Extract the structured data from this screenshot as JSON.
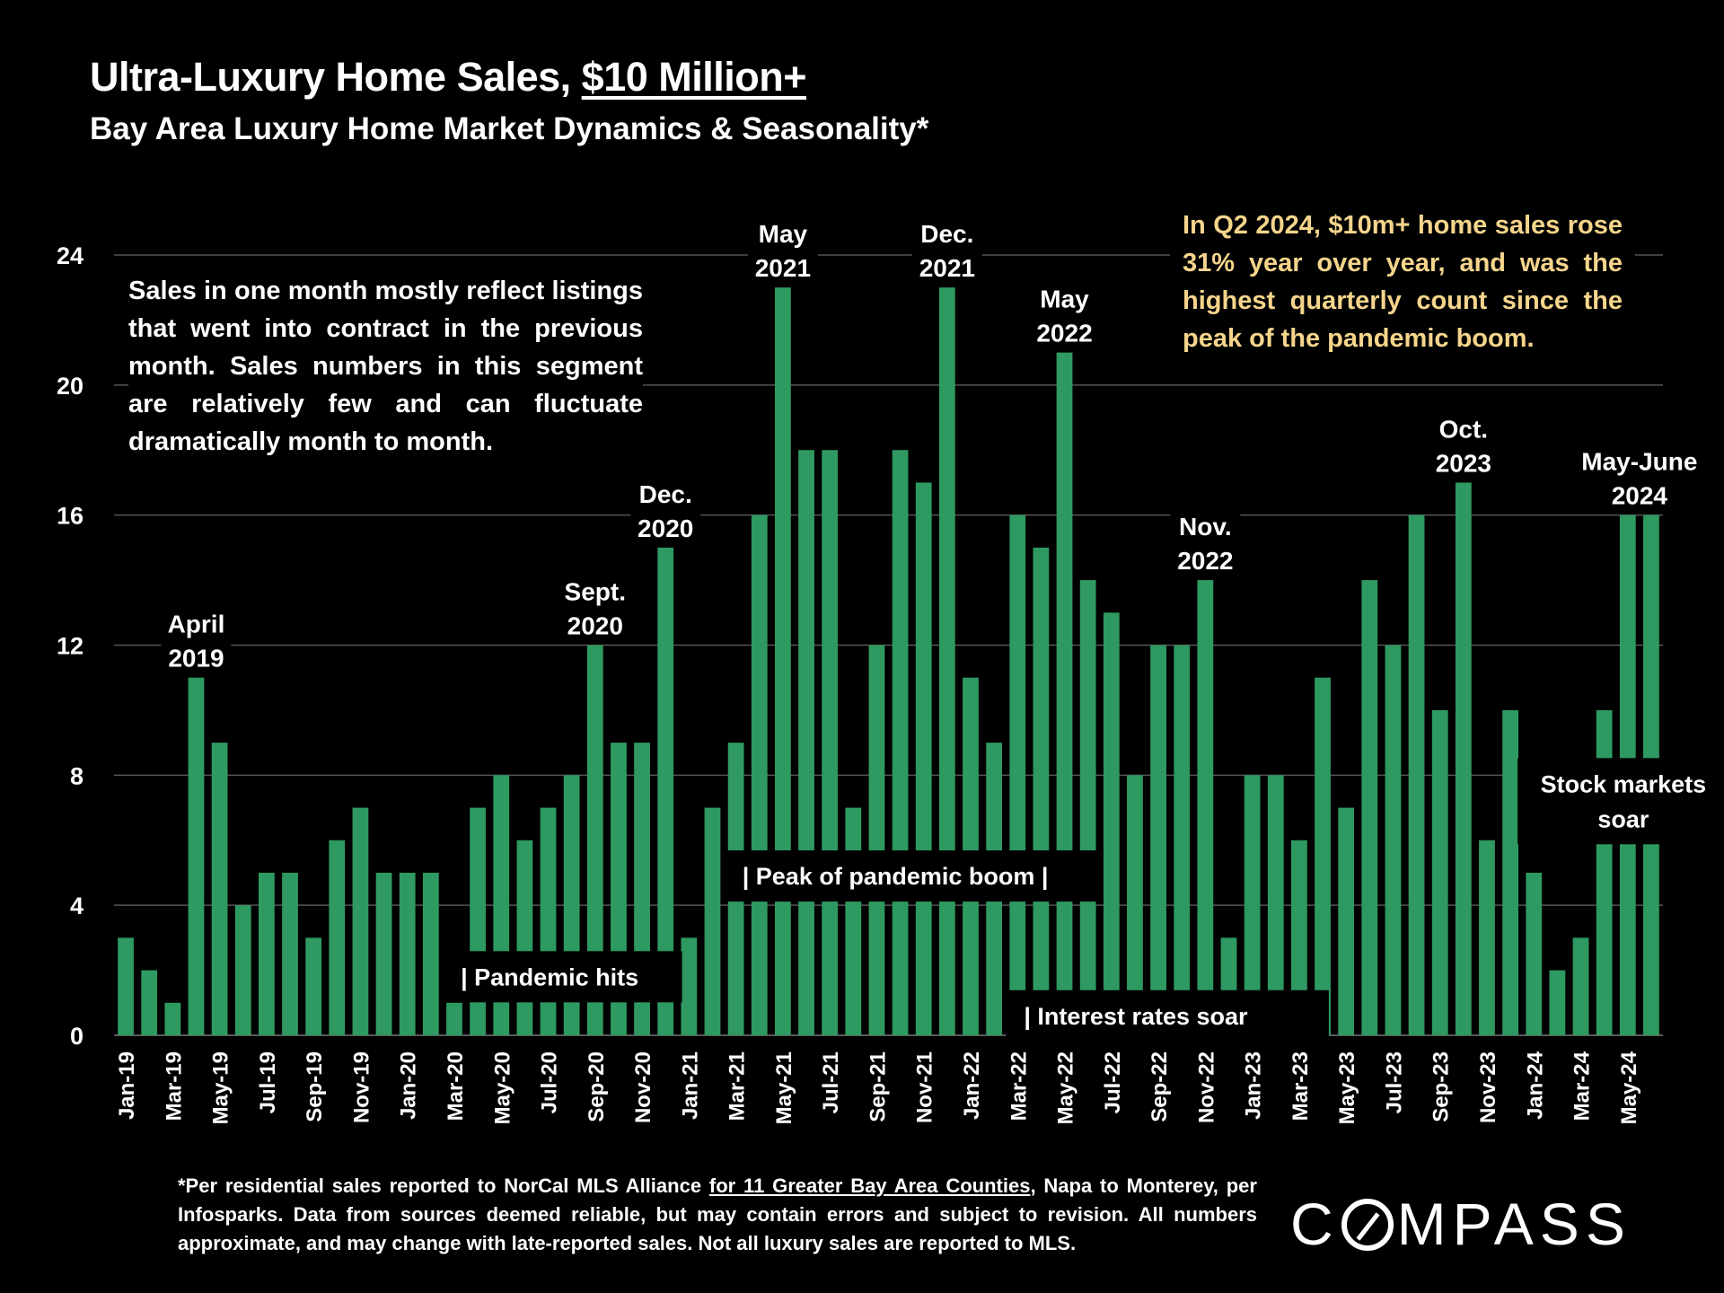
{
  "title": {
    "main": "Ultra-Luxury Home Sales, ",
    "main_underlined": "$10 Million+",
    "subtitle": "Bay Area Luxury Home Market Dynamics & Seasonality*"
  },
  "notes": {
    "left": "Sales in one month mostly reflect listings that went into contract in the previous month. Sales numbers in this segment are relatively few and can fluctuate dramatically month to month.",
    "right": "In Q2 2024, $10m+ home sales rose 31% year over year, and was the highest quarterly count since the peak of the pandemic boom."
  },
  "chart_data": {
    "type": "bar",
    "ylim": [
      0,
      24
    ],
    "yticks": [
      0,
      4,
      8,
      12,
      16,
      20,
      24
    ],
    "grid": true,
    "bar_color": "#2e9a61",
    "categories": [
      "Jan-19",
      "Feb-19",
      "Mar-19",
      "Apr-19",
      "May-19",
      "Jun-19",
      "Jul-19",
      "Aug-19",
      "Sep-19",
      "Oct-19",
      "Nov-19",
      "Dec-19",
      "Jan-20",
      "Feb-20",
      "Mar-20",
      "Apr-20",
      "May-20",
      "Jun-20",
      "Jul-20",
      "Aug-20",
      "Sep-20",
      "Oct-20",
      "Nov-20",
      "Dec-20",
      "Jan-21",
      "Feb-21",
      "Mar-21",
      "Apr-21",
      "May-21",
      "Jun-21",
      "Jul-21",
      "Aug-21",
      "Sep-21",
      "Oct-21",
      "Nov-21",
      "Dec-21",
      "Jan-22",
      "Feb-22",
      "Mar-22",
      "Apr-22",
      "May-22",
      "Jun-22",
      "Jul-22",
      "Aug-22",
      "Sep-22",
      "Oct-22",
      "Nov-22",
      "Dec-22",
      "Jan-23",
      "Feb-23",
      "Mar-23",
      "Apr-23",
      "May-23",
      "Jun-23",
      "Jul-23",
      "Aug-23",
      "Sep-23",
      "Oct-23",
      "Nov-23",
      "Dec-23",
      "Jan-24",
      "Feb-24",
      "Mar-24",
      "Apr-24",
      "May-24",
      "Jun-24"
    ],
    "values": [
      3,
      2,
      1,
      11,
      9,
      4,
      5,
      5,
      3,
      6,
      7,
      5,
      5,
      5,
      1,
      7,
      8,
      6,
      7,
      8,
      12,
      9,
      9,
      15,
      3,
      7,
      9,
      16,
      23,
      18,
      18,
      7,
      12,
      18,
      17,
      23,
      11,
      9,
      16,
      15,
      21,
      14,
      13,
      8,
      12,
      12,
      14,
      3,
      8,
      8,
      6,
      11,
      7,
      14,
      12,
      16,
      10,
      17,
      6,
      10,
      5,
      2,
      3,
      10,
      16,
      16
    ],
    "peak_labels": [
      {
        "index": 3,
        "line1": "April",
        "line2": "2019"
      },
      {
        "index": 20,
        "line1": "Sept.",
        "line2": "2020"
      },
      {
        "index": 23,
        "line1": "Dec.",
        "line2": "2020"
      },
      {
        "index": 28,
        "line1": "May",
        "line2": "2021"
      },
      {
        "index": 35,
        "line1": "Dec.",
        "line2": "2021"
      },
      {
        "index": 40,
        "line1": "May",
        "line2": "2022"
      },
      {
        "index": 46,
        "line1": "Nov.",
        "line2": "2022"
      },
      {
        "index": 57,
        "line1": "Oct.",
        "line2": "2023"
      },
      {
        "index": 64.5,
        "line1": "May-June",
        "line2": "2024"
      }
    ],
    "event_labels": [
      {
        "text": "| Pandemic hits",
        "start_index": 14,
        "y_value": 1.8
      },
      {
        "text": "| Peak of pandemic boom |",
        "start_index": 26,
        "y_value": 4.9
      },
      {
        "text": "| Interest rates soar",
        "start_index": 38,
        "y_value": 0.6
      },
      {
        "text_line1": "Stock markets",
        "text_line2": "soar",
        "start_index": 59.8,
        "y_value": 7.2
      }
    ]
  },
  "footer": {
    "part1": "*Per residential sales reported to NorCal MLS Alliance ",
    "part_underlined": "for 11 Greater Bay Area Counties",
    "part2": ", Napa to Monterey, per Infosparks. Data from sources deemed reliable, but may contain errors and subject to revision. All numbers approximate, and may change with late-reported sales. Not all luxury sales are reported to MLS."
  },
  "logo": {
    "before": "C",
    "after": "MPASS"
  }
}
